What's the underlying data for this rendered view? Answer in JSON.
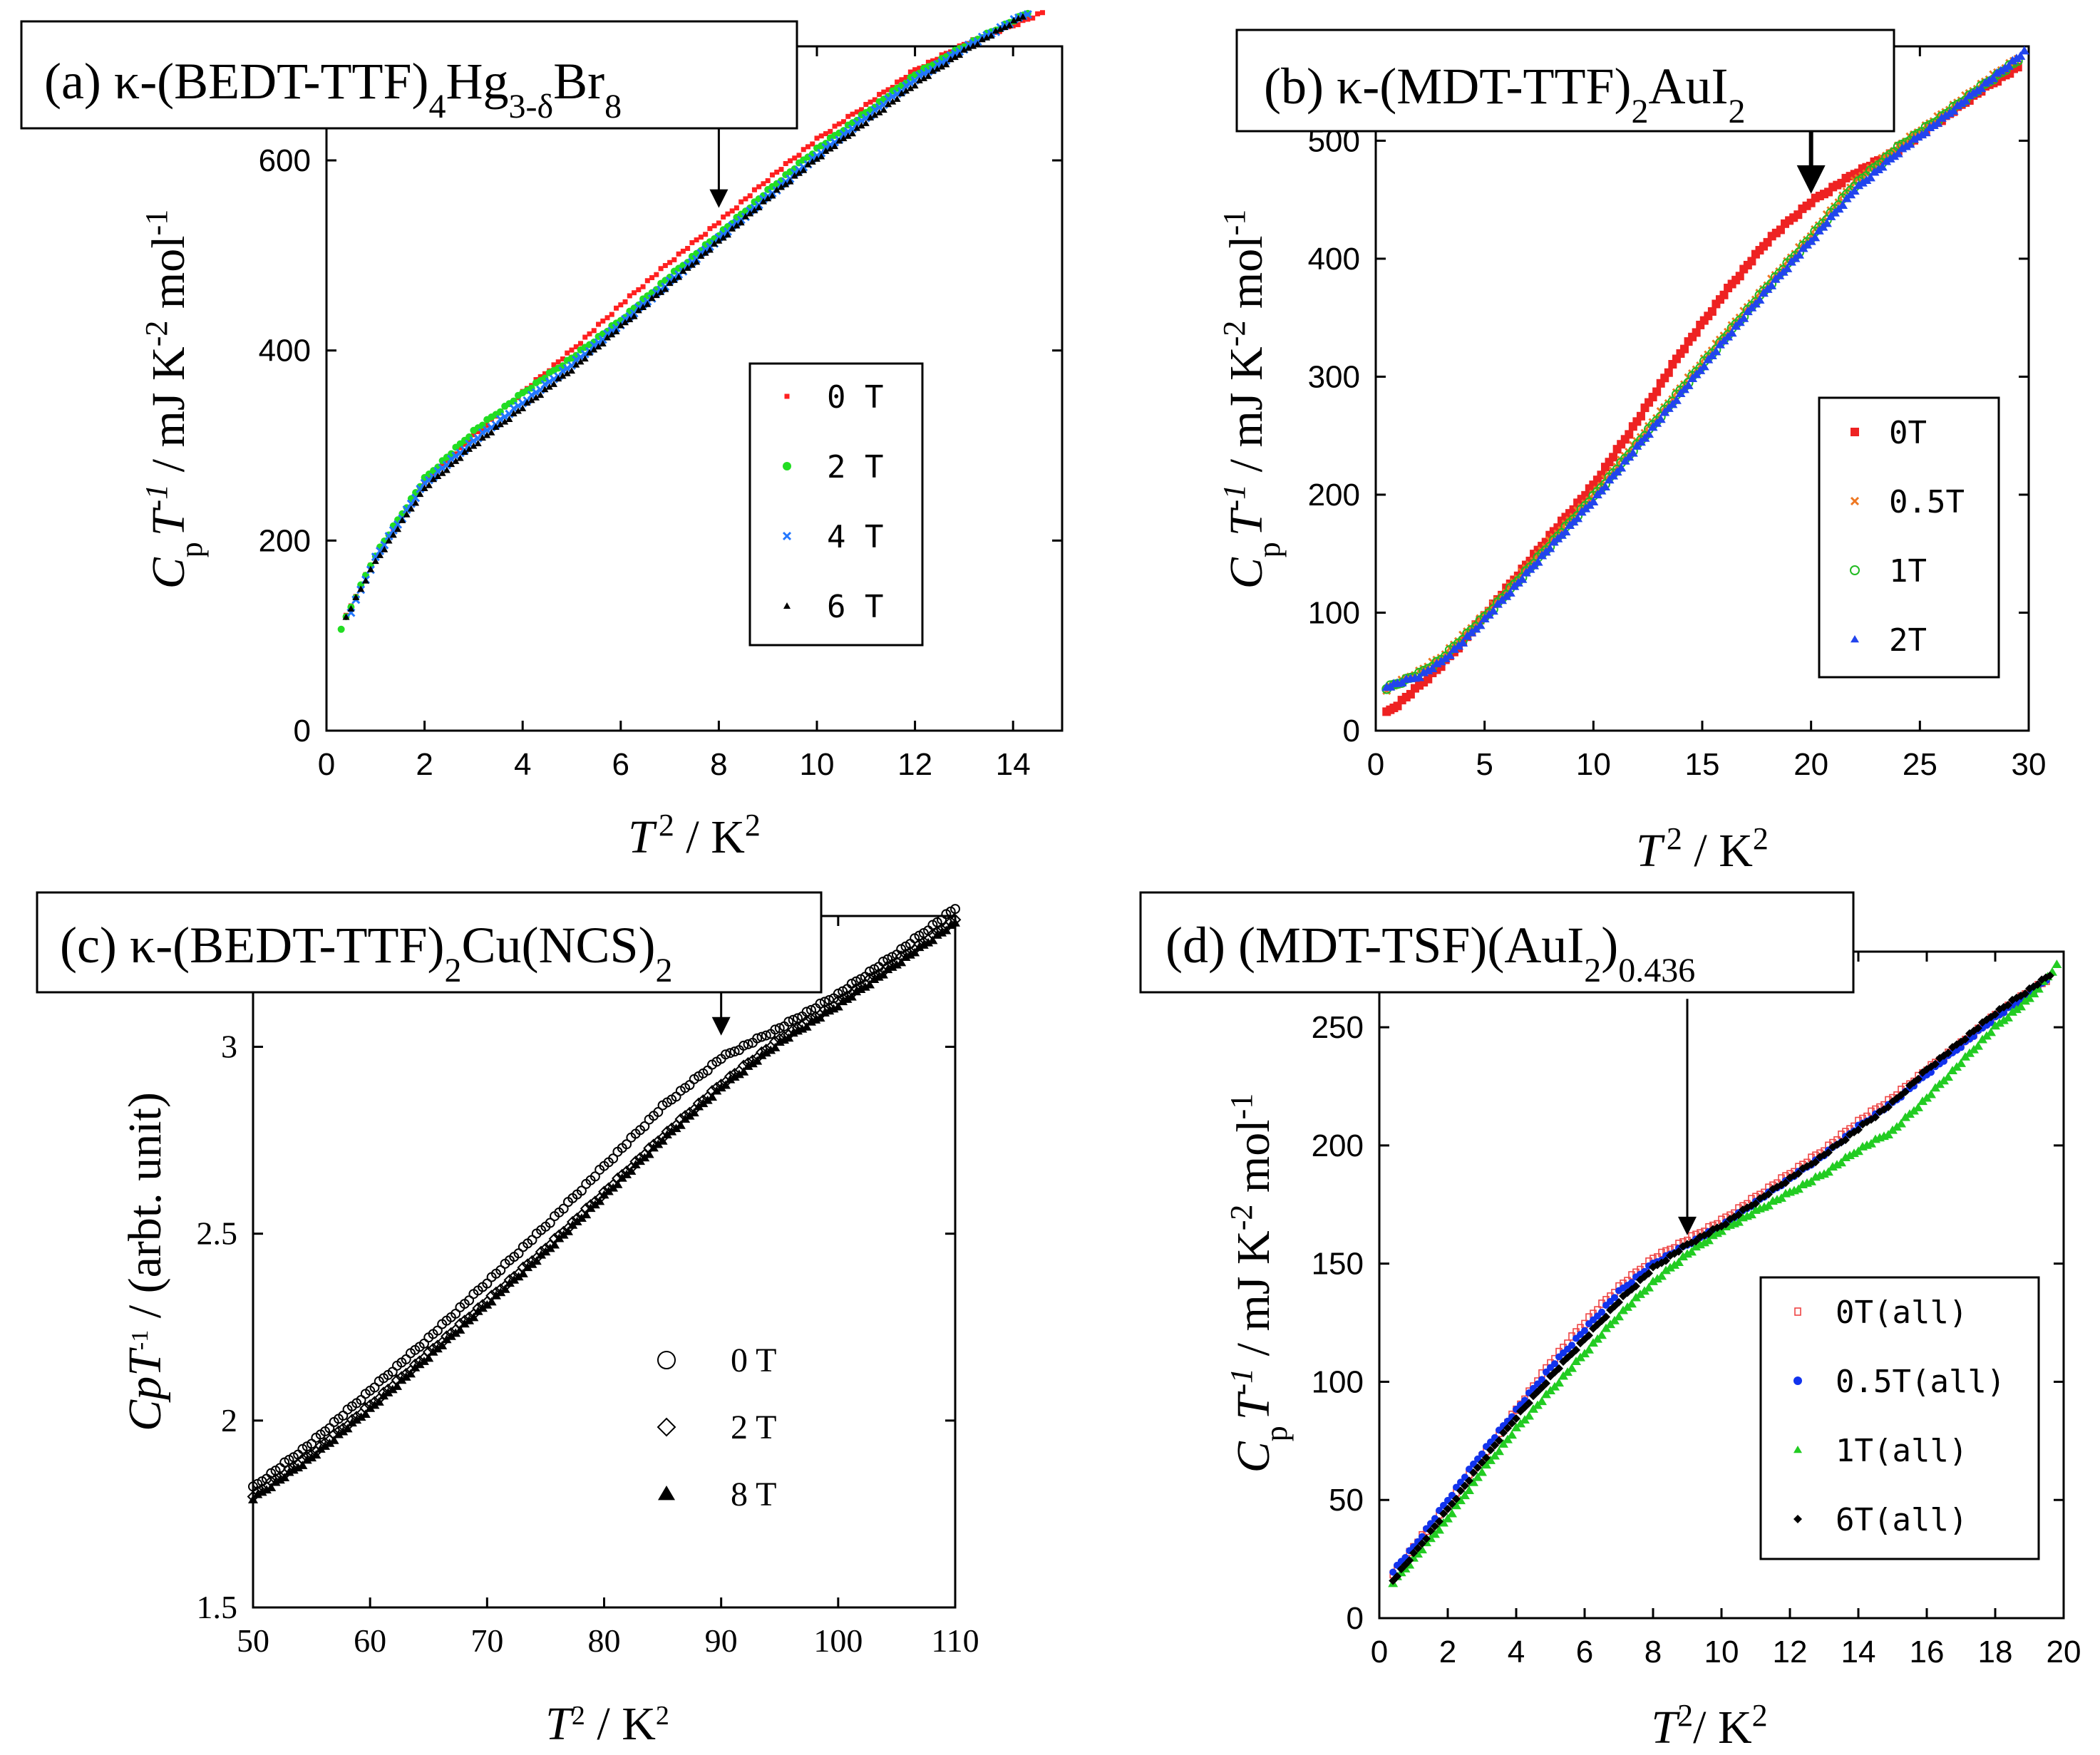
{
  "chart_data": [
    {
      "id": "a",
      "type": "scatter",
      "title": "(a) κ-(BEDT-TTF)4Hg3-δBr8",
      "title_parts": {
        "pre": "(a) κ-(BEDT-TTF)",
        "s1": "4",
        "m1": "Hg",
        "s2": "3-δ",
        "m2": "Br",
        "s3": "8"
      },
      "xlabel": "T 2 / K2",
      "xlabel_parts": {
        "t": "T",
        "sup1": "2",
        "mid": " / K",
        "sup2": "2"
      },
      "ylabel": "CpT-1 / mJ K-2 mol-1",
      "ylabel_parts": {
        "c": "C",
        "sub": "p",
        "t": "T",
        "sup1": "-1",
        "mid": " / mJ K",
        "sup2": "-2",
        "mol": " mol",
        "sup3": "-1"
      },
      "xlim": [
        0,
        15
      ],
      "ylim": [
        0,
        720
      ],
      "xticks": [
        0,
        2,
        4,
        6,
        8,
        10,
        12,
        14
      ],
      "xtick_labels": [
        "0",
        "2",
        "4",
        "6",
        "8",
        "10",
        "12",
        "14"
      ],
      "yticks": [
        0,
        200,
        400,
        600
      ],
      "ytick_labels": [
        "0",
        "200",
        "400",
        "600"
      ],
      "arrow_x": 8.0,
      "arrow_tip_y": 550,
      "arrow_len_y": 130,
      "legend_position": "right",
      "series": [
        {
          "name": "0 T",
          "label": "0  T",
          "marker": "square-small",
          "color": "#ff2020",
          "x": [
            0.4,
            1,
            2,
            3,
            4,
            5,
            6,
            7,
            8,
            9,
            10,
            11,
            12,
            13,
            14,
            14.6
          ],
          "y": [
            120,
            185,
            262,
            310,
            356,
            400,
            448,
            493,
            535,
            580,
            622,
            658,
            695,
            722,
            742,
            755
          ]
        },
        {
          "name": "2 T",
          "label": "2  T",
          "marker": "dot",
          "color": "#22dd22",
          "x": [
            0.3,
            1,
            2,
            3,
            4,
            5,
            6,
            7,
            8,
            9,
            10,
            11,
            12,
            13,
            14.3
          ],
          "y": [
            108,
            185,
            265,
            315,
            355,
            392,
            432,
            478,
            522,
            568,
            612,
            650,
            690,
            720,
            755
          ]
        },
        {
          "name": "4 T",
          "label": "4  T",
          "marker": "cross",
          "color": "#2277ff",
          "x": [
            0.5,
            1,
            2,
            3,
            4,
            5,
            6,
            7,
            8,
            9,
            10,
            11,
            12,
            13,
            14.3
          ],
          "y": [
            125,
            182,
            260,
            305,
            345,
            385,
            428,
            472,
            518,
            562,
            605,
            645,
            685,
            718,
            755
          ]
        },
        {
          "name": "6 T",
          "label": "6  T",
          "marker": "triangle-small",
          "color": "#000000",
          "x": [
            0.4,
            1,
            2,
            3,
            4,
            5,
            6,
            7,
            8,
            9,
            10,
            11,
            12,
            13,
            14.2
          ],
          "y": [
            120,
            178,
            255,
            300,
            340,
            380,
            425,
            470,
            515,
            560,
            602,
            640,
            680,
            715,
            752
          ]
        }
      ]
    },
    {
      "id": "b",
      "type": "scatter",
      "title": "(b) κ-(MDT-TTF)2AuI2",
      "title_parts": {
        "pre": "(b) κ-(MDT-TTF)",
        "s1": "2",
        "m1": "AuI",
        "s2": "2"
      },
      "xlabel": "T 2 / K2",
      "xlabel_parts": {
        "t": "T",
        "sup1": "2",
        "mid": " / K",
        "sup2": "2"
      },
      "ylabel": "CpT-1 / mJ K-2 mol-1",
      "ylabel_parts": {
        "c": "C",
        "sub": "p",
        "t": "T",
        "sup1": "-1",
        "mid": " / mJ K",
        "sup2": "-2",
        "mol": " mol",
        "sup3": "-1"
      },
      "xlim": [
        0,
        30
      ],
      "ylim": [
        0,
        580
      ],
      "xticks": [
        0,
        5,
        10,
        15,
        20,
        25,
        30
      ],
      "xtick_labels": [
        "0",
        "5",
        "10",
        "15",
        "20",
        "25",
        "30"
      ],
      "yticks": [
        0,
        100,
        200,
        300,
        400,
        500
      ],
      "ytick_labels": [
        "0",
        "100",
        "200",
        "300",
        "400",
        "500"
      ],
      "arrow_x": 20.0,
      "arrow_tip_y": 455,
      "arrow_len_y": 105,
      "legend_position": "right",
      "series": [
        {
          "name": "0T",
          "label": "0T",
          "marker": "square",
          "color": "#ee2222",
          "x": [
            0.5,
            1,
            2,
            3,
            4,
            5,
            6,
            8,
            10,
            12,
            14,
            16,
            18,
            19,
            20,
            21,
            22,
            24,
            26,
            28,
            29.5
          ],
          "y": [
            15,
            22,
            38,
            55,
            75,
            98,
            120,
            165,
            208,
            262,
            320,
            370,
            415,
            432,
            448,
            460,
            472,
            492,
            518,
            545,
            562
          ]
        },
        {
          "name": "0.5T",
          "label": "0.5T",
          "marker": "cross",
          "color": "#ee7722",
          "x": [
            0.5,
            1,
            2,
            3,
            4,
            5,
            6,
            8,
            10,
            12,
            14,
            16,
            18,
            20,
            22,
            24,
            26,
            28,
            29.5
          ],
          "y": [
            35,
            40,
            50,
            62,
            80,
            98,
            118,
            160,
            200,
            245,
            290,
            335,
            378,
            420,
            465,
            495,
            522,
            550,
            570
          ]
        },
        {
          "name": "1T",
          "label": "1T",
          "marker": "circle-open",
          "color": "#22bb22",
          "x": [
            0.5,
            1,
            2,
            3,
            4,
            5,
            6,
            8,
            10,
            12,
            14,
            16,
            18,
            20,
            22,
            24,
            26,
            28,
            29.5
          ],
          "y": [
            36,
            40,
            48,
            60,
            78,
            96,
            116,
            157,
            198,
            242,
            288,
            332,
            376,
            418,
            462,
            494,
            520,
            548,
            568
          ]
        },
        {
          "name": "2T",
          "label": "2T",
          "marker": "triangle",
          "color": "#2244ee",
          "x": [
            0.5,
            1,
            2,
            3,
            4,
            5,
            6,
            8,
            10,
            12,
            14,
            16,
            18,
            20,
            22,
            24,
            26,
            28,
            29.8
          ],
          "y": [
            37,
            40,
            46,
            58,
            75,
            94,
            114,
            155,
            195,
            240,
            285,
            330,
            374,
            415,
            458,
            490,
            518,
            548,
            575
          ]
        }
      ]
    },
    {
      "id": "c",
      "type": "scatter",
      "title": "(c) κ-(BEDT-TTF)2Cu(NCS)2",
      "title_parts": {
        "pre": "(c) κ-(BEDT-TTF)",
        "s1": "2",
        "m1": "Cu(NCS)",
        "s2": "2"
      },
      "xlabel": "T 2 / K 2",
      "xlabel_parts": {
        "t": "T",
        "sup1": "2",
        "mid": " / K",
        "sup2": "2"
      },
      "ylabel": "CpT-1 / (arbt. unit)",
      "ylabel_parts": {
        "c": "CpT",
        "sup1": "-1",
        "rest": " / (arbt. unit)"
      },
      "xlim": [
        50,
        110
      ],
      "ylim": [
        1.5,
        3.35
      ],
      "xticks": [
        50,
        60,
        70,
        80,
        90,
        100,
        110
      ],
      "xtick_labels": [
        "50",
        "60",
        "70",
        "80",
        "90",
        "100",
        "110"
      ],
      "yticks": [
        1.5,
        2,
        2.5,
        3
      ],
      "ytick_labels": [
        "1.5",
        "2",
        "2.5",
        "3"
      ],
      "arrow_x": 90.0,
      "arrow_tip_y": 3.03,
      "arrow_len_y": 0.23,
      "legend_position": "lower-right",
      "series": [
        {
          "name": "0 T",
          "label": "0   T",
          "marker": "circle-open",
          "color": "#000000",
          "x": [
            50,
            55,
            60,
            65,
            70,
            75,
            80,
            85,
            90,
            95,
            100,
            105,
            110
          ],
          "y": [
            1.82,
            1.94,
            2.08,
            2.22,
            2.37,
            2.52,
            2.68,
            2.84,
            2.97,
            3.05,
            3.14,
            3.25,
            3.37
          ]
        },
        {
          "name": "2 T",
          "label": "2   T",
          "marker": "diamond-open",
          "color": "#000000",
          "x": [
            50,
            55,
            60,
            65,
            70,
            75,
            80,
            85,
            90,
            95,
            100,
            105,
            110
          ],
          "y": [
            1.8,
            1.91,
            2.04,
            2.18,
            2.32,
            2.46,
            2.61,
            2.76,
            2.9,
            3.02,
            3.12,
            3.23,
            3.34
          ]
        },
        {
          "name": "8 T",
          "label": "8   T",
          "marker": "triangle",
          "color": "#000000",
          "x": [
            50,
            55,
            60,
            65,
            70,
            75,
            80,
            85,
            90,
            95,
            100,
            105,
            110
          ],
          "y": [
            1.79,
            1.9,
            2.03,
            2.17,
            2.31,
            2.45,
            2.6,
            2.75,
            2.89,
            3.01,
            3.11,
            3.22,
            3.33
          ]
        }
      ]
    },
    {
      "id": "d",
      "type": "scatter",
      "title": "(d) (MDT-TSF)(AuI2)0.436",
      "title_parts": {
        "pre": "(d) (MDT-TSF)(AuI",
        "s1": "2",
        "m1": ")",
        "s2": "0.436"
      },
      "xlabel": "T2/ K2",
      "xlabel_parts": {
        "t": "T",
        "sup1": "2",
        "mid": "/ K",
        "sup2": "2"
      },
      "ylabel": "CpT-1 / mJ K-2 mol-1",
      "ylabel_parts": {
        "c": "C",
        "sub": "p",
        "t": "T",
        "sup1": "-1",
        "mid": " / mJ K",
        "sup2": "-2",
        "mol": " mol",
        "sup3": "-1"
      },
      "xlim": [
        0,
        20
      ],
      "ylim": [
        0,
        282
      ],
      "xticks": [
        0,
        2,
        4,
        6,
        8,
        10,
        12,
        14,
        16,
        18,
        20
      ],
      "xtick_labels": [
        "0",
        "2",
        "4",
        "6",
        "8",
        "10",
        "12",
        "14",
        "16",
        "18",
        "20"
      ],
      "yticks": [
        0,
        50,
        100,
        150,
        200,
        250
      ],
      "ytick_labels": [
        "0",
        "50",
        "100",
        "150",
        "200",
        "250"
      ],
      "arrow_x": 9.0,
      "arrow_tip_y": 162,
      "arrow_len_y": 100,
      "legend_position": "lower-right",
      "series": [
        {
          "name": "0T(all)",
          "label": "0T(all)",
          "marker": "b-glyph",
          "color": "#ee4444",
          "x": [
            0.4,
            1,
            2,
            3,
            4,
            5,
            6,
            7,
            8,
            9,
            10,
            11,
            12,
            13,
            14,
            15,
            16,
            17,
            18,
            19,
            19.5
          ],
          "y": [
            18,
            30,
            48,
            68,
            88,
            108,
            125,
            140,
            152,
            160,
            168,
            178,
            188,
            198,
            210,
            220,
            232,
            243,
            255,
            265,
            270
          ]
        },
        {
          "name": "0.5T(all)",
          "label": "0.5T(all)",
          "marker": "dot",
          "color": "#1133ee",
          "x": [
            0.4,
            1,
            2,
            3,
            4,
            5,
            6,
            7,
            8,
            9,
            10,
            11,
            12,
            13,
            14,
            15,
            16,
            17,
            18,
            19,
            19.5
          ],
          "y": [
            20,
            30,
            50,
            70,
            88,
            106,
            122,
            138,
            150,
            158,
            166,
            176,
            186,
            196,
            208,
            218,
            230,
            242,
            254,
            264,
            270
          ]
        },
        {
          "name": "1T(all)",
          "label": "1T(all)",
          "marker": "triangle",
          "color": "#22cc22",
          "x": [
            0.4,
            1,
            2,
            3,
            4,
            5,
            6,
            7,
            8,
            9,
            10,
            11,
            12,
            13,
            14,
            15,
            16,
            17,
            18,
            19,
            19.8
          ],
          "y": [
            15,
            25,
            42,
            62,
            80,
            96,
            112,
            128,
            142,
            154,
            164,
            172,
            180,
            188,
            198,
            206,
            220,
            235,
            250,
            262,
            276
          ]
        },
        {
          "name": "6T(all)",
          "label": "6T(all)",
          "marker": "diamond",
          "color": "#000000",
          "x": [
            0.4,
            1,
            2,
            3,
            4,
            5,
            6,
            7,
            8,
            9,
            10,
            11,
            12,
            13,
            14,
            15,
            16,
            17,
            18,
            19,
            19.6
          ],
          "y": [
            16,
            27,
            46,
            66,
            85,
            102,
            118,
            134,
            148,
            158,
            166,
            176,
            186,
            196,
            207,
            218,
            232,
            244,
            256,
            266,
            272
          ]
        }
      ]
    }
  ]
}
